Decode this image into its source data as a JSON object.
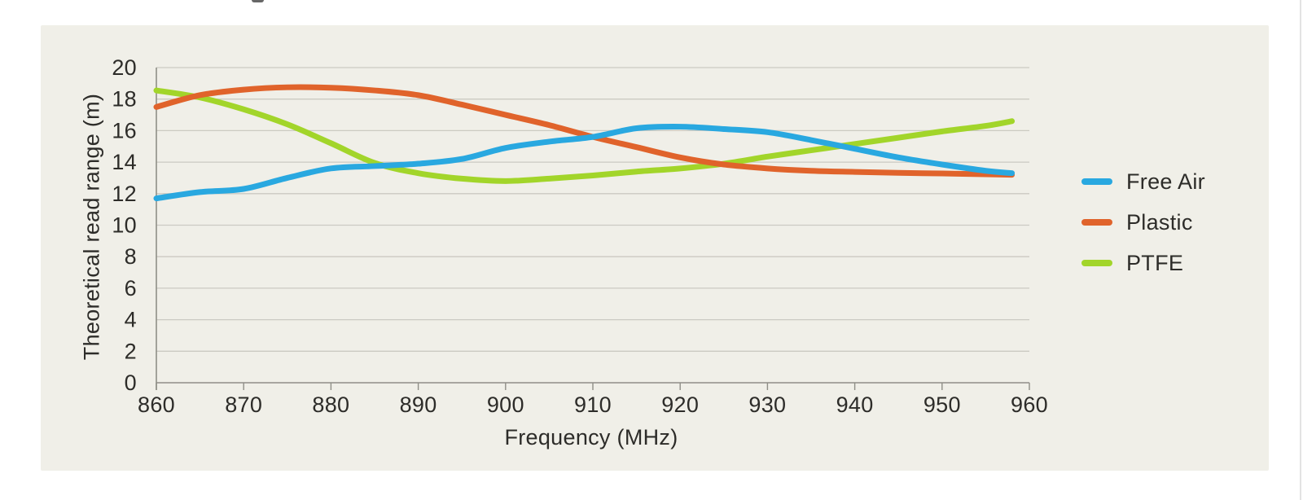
{
  "colors": {
    "card_background": "#f0efe8",
    "page_background": "#ffffff",
    "gridline": "#cbcac2",
    "axis": "#8f8e87",
    "text": "#2d2c29",
    "free_air": "#29a8e0",
    "plastic": "#e0632b",
    "ptfe": "#a2d52a"
  },
  "chart_data": {
    "type": "line",
    "title": "",
    "xlabel": "Frequency (MHz)",
    "ylabel": "Theoretical read range (m)",
    "xlim": [
      860,
      960
    ],
    "ylim": [
      0,
      20
    ],
    "x_ticks": [
      860,
      870,
      880,
      890,
      900,
      910,
      920,
      930,
      940,
      950,
      960
    ],
    "y_ticks": [
      0,
      2,
      4,
      6,
      8,
      10,
      12,
      14,
      16,
      18,
      20
    ],
    "grid": "horizontal",
    "legend_position": "right-outside",
    "x": [
      860,
      865,
      870,
      875,
      880,
      885,
      890,
      895,
      900,
      905,
      910,
      915,
      920,
      925,
      930,
      935,
      940,
      945,
      950,
      955,
      958
    ],
    "series": [
      {
        "name": "Free Air",
        "color": "#29a8e0",
        "values": [
          11.7,
          12.1,
          12.3,
          13.0,
          13.6,
          13.75,
          13.9,
          14.2,
          14.9,
          15.3,
          15.6,
          16.15,
          16.25,
          16.1,
          15.9,
          15.4,
          14.85,
          14.3,
          13.85,
          13.45,
          13.3
        ]
      },
      {
        "name": "Plastic",
        "color": "#e0632b",
        "values": [
          17.5,
          18.25,
          18.6,
          18.75,
          18.72,
          18.55,
          18.25,
          17.65,
          17.0,
          16.35,
          15.6,
          14.95,
          14.3,
          13.85,
          13.6,
          13.45,
          13.38,
          13.32,
          13.28,
          13.23,
          13.2
        ]
      },
      {
        "name": "PTFE",
        "color": "#a2d52a",
        "values": [
          18.55,
          18.1,
          17.35,
          16.4,
          15.2,
          13.95,
          13.3,
          12.95,
          12.8,
          12.95,
          13.15,
          13.4,
          13.6,
          13.9,
          14.35,
          14.75,
          15.15,
          15.55,
          15.95,
          16.3,
          16.6
        ]
      }
    ],
    "draw_order": [
      "PTFE",
      "Plastic",
      "Free Air"
    ]
  },
  "legend": {
    "items": [
      "Free Air",
      "Plastic",
      "PTFE"
    ]
  }
}
